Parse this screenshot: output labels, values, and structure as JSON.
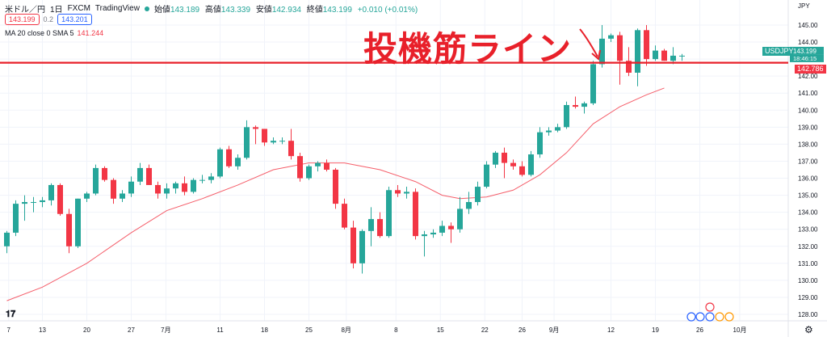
{
  "header": {
    "symbol": "米ドル／円",
    "interval": "1日",
    "exchange": "FXCM",
    "source": "TradingView",
    "open_label": "始値",
    "open": "143.189",
    "high_label": "高値",
    "high": "143.339",
    "low_label": "安値",
    "low": "142.934",
    "close_label": "終値",
    "close": "143.199",
    "change": "+0.010 (+0.01%)",
    "bid": "143.199",
    "ask": "143.201",
    "spread": "0.2"
  },
  "ma_legend": {
    "label": "MA 20 close 0 SMA 5",
    "value": "141.244"
  },
  "annotation": {
    "text": "投機筋ライン"
  },
  "price_axis": {
    "currency": "JPY"
  },
  "tags": {
    "symbol": "USDJPY",
    "price": "143.199",
    "countdown": "18:46:15",
    "line_price": "142.786"
  },
  "colors": {
    "up": "#26a69a",
    "down": "#f23645",
    "ma": "#f23645",
    "line": "#e8202a",
    "grid": "#f0f3fa"
  },
  "chart_data": {
    "type": "candlestick",
    "y_range": [
      127.6,
      145.6
    ],
    "y_ticks": [
      "145.00",
      "144.00",
      "143.00",
      "142.00",
      "141.00",
      "140.00",
      "139.00",
      "138.00",
      "137.00",
      "136.00",
      "135.00",
      "134.00",
      "133.00",
      "132.00",
      "131.00",
      "130.00",
      "129.00",
      "128.00"
    ],
    "x_ticks": [
      {
        "label": "7",
        "i": 0.2
      },
      {
        "label": "13",
        "i": 4
      },
      {
        "label": "20",
        "i": 9
      },
      {
        "label": "27",
        "i": 14
      },
      {
        "label": "7月",
        "i": 17.9
      },
      {
        "label": "11",
        "i": 24
      },
      {
        "label": "18",
        "i": 29
      },
      {
        "label": "25",
        "i": 34
      },
      {
        "label": "8月",
        "i": 38.2
      },
      {
        "label": "8",
        "i": 43.8
      },
      {
        "label": "15",
        "i": 48.8
      },
      {
        "label": "22",
        "i": 53.8
      },
      {
        "label": "26",
        "i": 58
      },
      {
        "label": "9月",
        "i": 61.6
      },
      {
        "label": "12",
        "i": 68
      },
      {
        "label": "19",
        "i": 73
      },
      {
        "label": "26",
        "i": 78
      },
      {
        "label": "10月",
        "i": 82.5
      }
    ],
    "horizontal_line": 142.786,
    "candles": [
      {
        "o": 132.0,
        "h": 132.9,
        "l": 131.6,
        "c": 132.8
      },
      {
        "o": 132.8,
        "h": 134.7,
        "l": 132.6,
        "c": 134.5
      },
      {
        "o": 134.5,
        "h": 135.0,
        "l": 133.5,
        "c": 134.6
      },
      {
        "o": 134.6,
        "h": 134.9,
        "l": 134.0,
        "c": 134.6
      },
      {
        "o": 134.6,
        "h": 134.9,
        "l": 134.3,
        "c": 134.7
      },
      {
        "o": 134.7,
        "h": 135.7,
        "l": 134.4,
        "c": 135.6
      },
      {
        "o": 135.6,
        "h": 135.7,
        "l": 133.8,
        "c": 133.9
      },
      {
        "o": 133.9,
        "h": 134.2,
        "l": 131.6,
        "c": 132.0
      },
      {
        "o": 132.0,
        "h": 134.8,
        "l": 131.9,
        "c": 134.8
      },
      {
        "o": 134.8,
        "h": 135.2,
        "l": 134.6,
        "c": 135.1
      },
      {
        "o": 135.1,
        "h": 136.8,
        "l": 135.0,
        "c": 136.6
      },
      {
        "o": 136.6,
        "h": 136.7,
        "l": 135.8,
        "c": 135.9
      },
      {
        "o": 135.9,
        "h": 136.0,
        "l": 134.5,
        "c": 134.8
      },
      {
        "o": 134.8,
        "h": 135.3,
        "l": 134.6,
        "c": 135.1
      },
      {
        "o": 135.1,
        "h": 136.1,
        "l": 134.9,
        "c": 135.8
      },
      {
        "o": 135.8,
        "h": 136.9,
        "l": 135.6,
        "c": 136.6
      },
      {
        "o": 136.6,
        "h": 136.8,
        "l": 135.6,
        "c": 135.6
      },
      {
        "o": 135.6,
        "h": 135.8,
        "l": 134.8,
        "c": 135.1
      },
      {
        "o": 135.1,
        "h": 135.7,
        "l": 134.8,
        "c": 135.4
      },
      {
        "o": 135.4,
        "h": 135.8,
        "l": 135.1,
        "c": 135.7
      },
      {
        "o": 135.7,
        "h": 136.1,
        "l": 135.0,
        "c": 135.2
      },
      {
        "o": 135.2,
        "h": 136.0,
        "l": 135.1,
        "c": 135.9
      },
      {
        "o": 135.9,
        "h": 136.2,
        "l": 135.7,
        "c": 135.9
      },
      {
        "o": 135.9,
        "h": 136.3,
        "l": 135.7,
        "c": 136.1
      },
      {
        "o": 136.1,
        "h": 137.8,
        "l": 136.0,
        "c": 137.7
      },
      {
        "o": 137.7,
        "h": 137.9,
        "l": 136.6,
        "c": 136.7
      },
      {
        "o": 136.7,
        "h": 137.4,
        "l": 136.5,
        "c": 137.2
      },
      {
        "o": 137.2,
        "h": 139.4,
        "l": 137.1,
        "c": 139.0
      },
      {
        "o": 139.0,
        "h": 139.1,
        "l": 138.0,
        "c": 138.9
      },
      {
        "o": 138.9,
        "h": 138.9,
        "l": 137.9,
        "c": 138.1
      },
      {
        "o": 138.1,
        "h": 138.4,
        "l": 138.0,
        "c": 138.2
      },
      {
        "o": 138.2,
        "h": 138.4,
        "l": 138.0,
        "c": 138.2
      },
      {
        "o": 138.2,
        "h": 138.9,
        "l": 137.1,
        "c": 137.3
      },
      {
        "o": 137.3,
        "h": 137.5,
        "l": 135.8,
        "c": 136.0
      },
      {
        "o": 136.0,
        "h": 136.8,
        "l": 135.9,
        "c": 136.7
      },
      {
        "o": 136.7,
        "h": 137.0,
        "l": 136.4,
        "c": 136.9
      },
      {
        "o": 136.9,
        "h": 137.1,
        "l": 136.4,
        "c": 136.5
      },
      {
        "o": 136.5,
        "h": 136.6,
        "l": 134.2,
        "c": 134.5
      },
      {
        "o": 134.5,
        "h": 134.8,
        "l": 133.0,
        "c": 133.1
      },
      {
        "o": 133.1,
        "h": 133.5,
        "l": 130.7,
        "c": 131.0
      },
      {
        "o": 131.0,
        "h": 133.0,
        "l": 130.4,
        "c": 132.9
      },
      {
        "o": 132.9,
        "h": 134.3,
        "l": 132.0,
        "c": 133.6
      },
      {
        "o": 133.6,
        "h": 134.0,
        "l": 132.5,
        "c": 132.6
      },
      {
        "o": 132.6,
        "h": 135.5,
        "l": 132.5,
        "c": 135.3
      },
      {
        "o": 135.3,
        "h": 135.6,
        "l": 134.9,
        "c": 135.1
      },
      {
        "o": 135.1,
        "h": 135.5,
        "l": 134.8,
        "c": 135.2
      },
      {
        "o": 135.2,
        "h": 135.4,
        "l": 132.4,
        "c": 132.6
      },
      {
        "o": 132.6,
        "h": 132.9,
        "l": 131.4,
        "c": 132.7
      },
      {
        "o": 132.7,
        "h": 133.0,
        "l": 132.5,
        "c": 132.8
      },
      {
        "o": 132.8,
        "h": 133.5,
        "l": 132.6,
        "c": 133.2
      },
      {
        "o": 133.2,
        "h": 133.4,
        "l": 132.2,
        "c": 133.0
      },
      {
        "o": 133.0,
        "h": 134.9,
        "l": 132.8,
        "c": 134.2
      },
      {
        "o": 134.2,
        "h": 135.2,
        "l": 133.9,
        "c": 134.6
      },
      {
        "o": 134.6,
        "h": 135.8,
        "l": 134.4,
        "c": 135.5
      },
      {
        "o": 135.5,
        "h": 137.0,
        "l": 135.4,
        "c": 136.8
      },
      {
        "o": 136.8,
        "h": 137.6,
        "l": 136.6,
        "c": 137.5
      },
      {
        "o": 137.5,
        "h": 137.8,
        "l": 136.0,
        "c": 136.9
      },
      {
        "o": 136.9,
        "h": 137.1,
        "l": 136.5,
        "c": 136.7
      },
      {
        "o": 136.7,
        "h": 137.0,
        "l": 136.1,
        "c": 136.2
      },
      {
        "o": 136.2,
        "h": 137.6,
        "l": 136.1,
        "c": 137.4
      },
      {
        "o": 137.4,
        "h": 139.0,
        "l": 137.2,
        "c": 138.7
      },
      {
        "o": 138.7,
        "h": 139.0,
        "l": 138.5,
        "c": 138.8
      },
      {
        "o": 138.8,
        "h": 139.2,
        "l": 138.7,
        "c": 139.0
      },
      {
        "o": 139.0,
        "h": 140.5,
        "l": 138.9,
        "c": 140.3
      },
      {
        "o": 140.3,
        "h": 140.8,
        "l": 140.1,
        "c": 140.2
      },
      {
        "o": 140.2,
        "h": 140.5,
        "l": 139.8,
        "c": 140.4
      },
      {
        "o": 140.4,
        "h": 142.9,
        "l": 140.3,
        "c": 142.7
      },
      {
        "o": 142.7,
        "h": 145.0,
        "l": 142.5,
        "c": 144.2
      },
      {
        "o": 144.2,
        "h": 144.5,
        "l": 144.0,
        "c": 144.4
      },
      {
        "o": 144.4,
        "h": 144.6,
        "l": 141.5,
        "c": 142.9
      },
      {
        "o": 142.9,
        "h": 143.7,
        "l": 142.0,
        "c": 142.2
      },
      {
        "o": 142.2,
        "h": 144.8,
        "l": 141.4,
        "c": 144.7
      },
      {
        "o": 144.7,
        "h": 145.0,
        "l": 142.6,
        "c": 143.0
      },
      {
        "o": 143.0,
        "h": 143.8,
        "l": 142.9,
        "c": 143.5
      },
      {
        "o": 143.5,
        "h": 143.6,
        "l": 142.9,
        "c": 142.9
      },
      {
        "o": 142.9,
        "h": 143.7,
        "l": 142.7,
        "c": 143.2
      },
      {
        "o": 143.2,
        "h": 143.3,
        "l": 142.9,
        "c": 143.2
      }
    ],
    "ma_series": {
      "name": "MA 20 close 0 SMA 5",
      "points": [
        [
          0,
          128.8
        ],
        [
          4,
          129.6
        ],
        [
          9,
          131.0
        ],
        [
          14,
          132.8
        ],
        [
          18,
          134.1
        ],
        [
          22,
          134.8
        ],
        [
          26,
          135.6
        ],
        [
          30,
          136.5
        ],
        [
          34,
          136.9
        ],
        [
          38,
          136.9
        ],
        [
          42,
          136.5
        ],
        [
          46,
          135.8
        ],
        [
          49,
          135.0
        ],
        [
          51,
          134.8
        ],
        [
          54,
          134.9
        ],
        [
          57,
          135.3
        ],
        [
          60,
          136.2
        ],
        [
          63,
          137.5
        ],
        [
          66,
          139.2
        ],
        [
          69,
          140.2
        ],
        [
          72,
          140.9
        ],
        [
          74,
          141.3
        ]
      ]
    }
  }
}
